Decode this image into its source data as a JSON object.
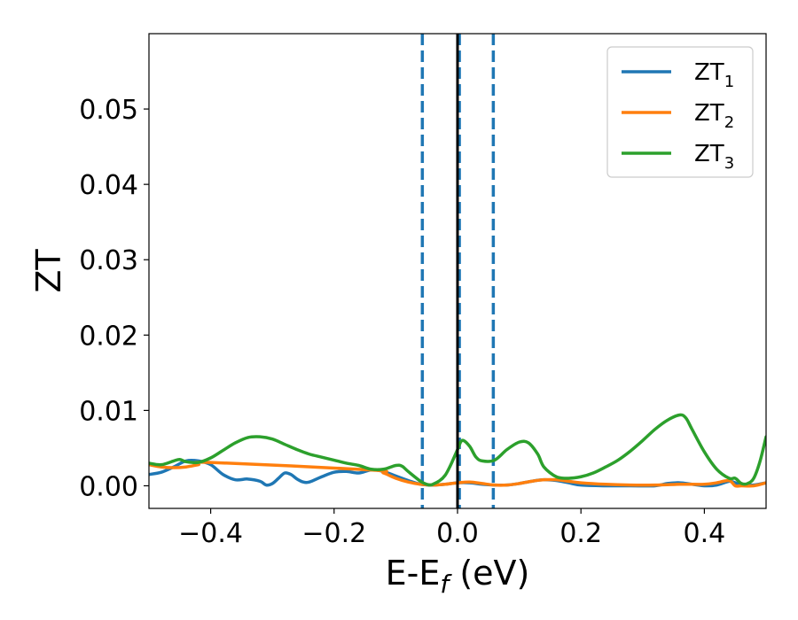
{
  "chart_data": {
    "type": "line",
    "title": "",
    "xlabel": "E-E_f (eV)",
    "xlabel_main": "E-E",
    "xlabel_sub": "f",
    "xlabel_unit": " (eV)",
    "ylabel": "ZT",
    "xlim": [
      -0.5,
      0.5
    ],
    "ylim": [
      -0.003,
      0.06
    ],
    "xticks": [
      -0.4,
      -0.2,
      0.0,
      0.2,
      0.4
    ],
    "xtick_labels": [
      "−0.4",
      "−0.2",
      "0.0",
      "0.2",
      "0.4"
    ],
    "yticks": [
      0.0,
      0.01,
      0.02,
      0.03,
      0.04,
      0.05
    ],
    "ytick_labels": [
      "0.00",
      "0.01",
      "0.02",
      "0.03",
      "0.04",
      "0.05"
    ],
    "legend_position": "top-right",
    "grid": false,
    "vlines": [
      {
        "x": -0.057,
        "style": "dashed",
        "color": "#1f77b4"
      },
      {
        "x": 0.003,
        "style": "dashed",
        "color": "#1f77b4"
      },
      {
        "x": 0.058,
        "style": "dashed",
        "color": "#1f77b4"
      },
      {
        "x": 0.0,
        "style": "solid",
        "color": "#000000"
      }
    ],
    "series": [
      {
        "name": "ZT1",
        "label_main": "ZT",
        "label_sub": "1",
        "color": "#1f77b4",
        "x": [
          -0.5,
          -0.48,
          -0.46,
          -0.44,
          -0.42,
          -0.4,
          -0.38,
          -0.36,
          -0.34,
          -0.32,
          -0.31,
          -0.3,
          -0.29,
          -0.28,
          -0.27,
          -0.26,
          -0.25,
          -0.24,
          -0.22,
          -0.2,
          -0.18,
          -0.16,
          -0.14,
          -0.12,
          -0.1,
          -0.08,
          -0.06,
          -0.04,
          -0.02,
          0.0,
          0.02,
          0.04,
          0.06,
          0.08,
          0.1,
          0.12,
          0.14,
          0.16,
          0.18,
          0.2,
          0.24,
          0.28,
          0.32,
          0.34,
          0.36,
          0.38,
          0.4,
          0.42,
          0.44,
          0.45,
          0.46,
          0.48,
          0.5
        ],
        "y": [
          0.0015,
          0.0018,
          0.0025,
          0.0033,
          0.0033,
          0.0028,
          0.0015,
          0.0008,
          0.0009,
          0.0006,
          0.0001,
          0.0003,
          0.001,
          0.0017,
          0.0015,
          0.0009,
          0.0005,
          0.0005,
          0.0012,
          0.0018,
          0.0019,
          0.0017,
          0.0021,
          0.0019,
          0.0013,
          0.0007,
          0.0002,
          0.0001,
          0.0002,
          0.0004,
          0.0004,
          0.0002,
          0.0001,
          0.0001,
          0.0003,
          0.0006,
          0.0008,
          0.0007,
          0.0004,
          0.0001,
          0.0,
          0.0,
          0.0,
          0.0003,
          0.0004,
          0.0002,
          0.0,
          0.0001,
          0.0006,
          0.0004,
          0.0001,
          0.0001,
          0.0004
        ]
      },
      {
        "name": "ZT2",
        "label_main": "ZT",
        "label_sub": "2",
        "color": "#ff7f0e",
        "x": [
          -0.5,
          -0.48,
          -0.46,
          -0.44,
          -0.42,
          -0.4,
          -0.14,
          -0.12,
          -0.1,
          -0.08,
          -0.06,
          -0.04,
          -0.02,
          0.0,
          0.02,
          0.04,
          0.06,
          0.08,
          0.1,
          0.12,
          0.14,
          0.16,
          0.18,
          0.2,
          0.24,
          0.28,
          0.32,
          0.36,
          0.4,
          0.42,
          0.44,
          0.45,
          0.46,
          0.48,
          0.5
        ],
        "y": [
          0.0028,
          0.0025,
          0.0024,
          0.0025,
          0.0028,
          0.0031,
          0.0021,
          0.0017,
          0.001,
          0.0005,
          0.0002,
          0.0001,
          0.0002,
          0.0004,
          0.0005,
          0.0003,
          0.0001,
          0.0001,
          0.0003,
          0.0006,
          0.0008,
          0.0008,
          0.0006,
          0.0004,
          0.0002,
          0.0001,
          0.0001,
          0.0002,
          0.0002,
          0.0004,
          0.0007,
          0.0,
          0.0,
          0.0,
          0.0004
        ]
      },
      {
        "name": "ZT3",
        "label_main": "ZT",
        "label_sub": "3",
        "color": "#2ca02c",
        "x": [
          -0.5,
          -0.48,
          -0.46,
          -0.45,
          -0.44,
          -0.42,
          -0.4,
          -0.38,
          -0.36,
          -0.34,
          -0.32,
          -0.3,
          -0.28,
          -0.26,
          -0.24,
          -0.22,
          -0.2,
          -0.18,
          -0.16,
          -0.14,
          -0.12,
          -0.1,
          -0.09,
          -0.08,
          -0.06,
          -0.05,
          -0.04,
          -0.02,
          0.0,
          0.005,
          0.01,
          0.02,
          0.03,
          0.04,
          0.06,
          0.08,
          0.1,
          0.115,
          0.13,
          0.14,
          0.16,
          0.18,
          0.2,
          0.22,
          0.24,
          0.26,
          0.28,
          0.3,
          0.32,
          0.34,
          0.36,
          0.37,
          0.38,
          0.4,
          0.42,
          0.44,
          0.45,
          0.46,
          0.47,
          0.48,
          0.49,
          0.5
        ],
        "y": [
          0.003,
          0.0028,
          0.0033,
          0.0035,
          0.0032,
          0.0031,
          0.0037,
          0.0047,
          0.0057,
          0.0064,
          0.0065,
          0.0062,
          0.0055,
          0.0048,
          0.0042,
          0.0038,
          0.0034,
          0.003,
          0.0027,
          0.0022,
          0.0022,
          0.0027,
          0.0026,
          0.0019,
          0.0006,
          0.0002,
          0.0002,
          0.0014,
          0.0048,
          0.0058,
          0.006,
          0.0052,
          0.0038,
          0.0033,
          0.0034,
          0.0048,
          0.0058,
          0.0057,
          0.0042,
          0.0025,
          0.0012,
          0.001,
          0.0012,
          0.0017,
          0.0025,
          0.0034,
          0.0046,
          0.006,
          0.0075,
          0.0087,
          0.0094,
          0.009,
          0.0075,
          0.0045,
          0.0022,
          0.001,
          0.001,
          0.0003,
          0.0003,
          0.001,
          0.0032,
          0.0065
        ]
      }
    ]
  }
}
